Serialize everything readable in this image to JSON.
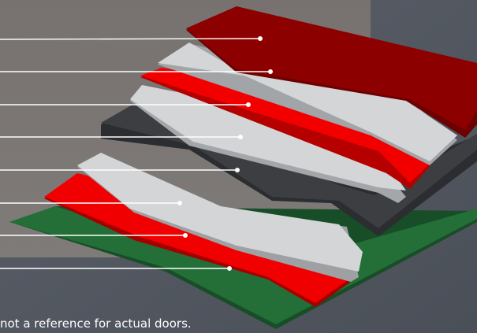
{
  "figure": {
    "type": "exploded-layer-diagram",
    "layer_count": 8,
    "layers_top_to_bottom": [
      {
        "id": "layer-1",
        "material_color": "#8d0000"
      },
      {
        "id": "layer-2",
        "material_color": "#d3d5d7"
      },
      {
        "id": "layer-3",
        "material_color": "#f20000"
      },
      {
        "id": "layer-4",
        "material_color": "#d3d5d7"
      },
      {
        "id": "layer-5",
        "material_color": "#3b3d40"
      },
      {
        "id": "layer-6",
        "material_color": "#d3d5d7"
      },
      {
        "id": "layer-7",
        "material_color": "#f20000"
      },
      {
        "id": "layer-8",
        "material_color": "#1f6b34"
      }
    ],
    "leader_line_count": 8,
    "leader_labels_visible": false
  },
  "footer": {
    "note_fragment": "not a reference for actual doors."
  },
  "colors": {
    "background": "#505660",
    "label_panel": "#7b7775",
    "leader_line": "#ffffff"
  }
}
